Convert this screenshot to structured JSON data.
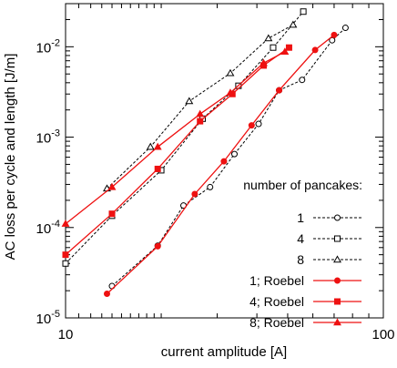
{
  "chart_data": {
    "type": "line",
    "title": "",
    "xlabel": "current amplitude [A]",
    "ylabel": "AC loss per cycle and length [J/m]",
    "xscale": "log",
    "yscale": "log",
    "xlim": [
      10,
      100
    ],
    "ylim": [
      1e-05,
      0.03
    ],
    "x_ticks": [
      {
        "value": 10,
        "label": "10"
      },
      {
        "value": 100,
        "label": "100"
      }
    ],
    "y_ticks": [
      {
        "value": 1e-05,
        "base": "10",
        "exp": "-5"
      },
      {
        "value": 0.0001,
        "base": "10",
        "exp": "-4"
      },
      {
        "value": 0.001,
        "base": "10",
        "exp": "-3"
      },
      {
        "value": 0.01,
        "base": "10",
        "exp": "-2"
      }
    ],
    "grid": false,
    "legend_title": "number of pancakes:",
    "legend_position": "bottom-right",
    "series": [
      {
        "name": "1",
        "color": "#000000",
        "dash": true,
        "marker": "circle-open",
        "points": [
          [
            14.0,
            2.25e-05
          ],
          [
            19.5,
            6.3e-05
          ],
          [
            23.5,
            0.000175
          ],
          [
            28.5,
            0.00028
          ],
          [
            34.0,
            0.00065
          ],
          [
            40.5,
            0.0014
          ],
          [
            47.0,
            0.0033
          ],
          [
            55.5,
            0.0043
          ],
          [
            69.0,
            0.0118
          ],
          [
            76.0,
            0.0162
          ]
        ]
      },
      {
        "name": "4",
        "color": "#000000",
        "dash": true,
        "marker": "square-open",
        "points": [
          [
            10.0,
            4e-05
          ],
          [
            14.0,
            0.000135
          ],
          [
            20.0,
            0.00043
          ],
          [
            27.0,
            0.0016
          ],
          [
            35.0,
            0.0037
          ],
          [
            45.0,
            0.0098
          ],
          [
            56.0,
            0.0245
          ]
        ]
      },
      {
        "name": "8",
        "color": "#000000",
        "dash": true,
        "marker": "triangle-open",
        "points": [
          [
            13.5,
            0.00027
          ],
          [
            18.5,
            0.00078
          ],
          [
            24.5,
            0.0025
          ],
          [
            33.0,
            0.0051
          ],
          [
            43.5,
            0.0124
          ],
          [
            52.0,
            0.0175
          ]
        ]
      },
      {
        "name": "1; Roebel",
        "color": "#ee1111",
        "dash": false,
        "marker": "circle-filled",
        "points": [
          [
            13.5,
            1.85e-05
          ],
          [
            19.5,
            6.2e-05
          ],
          [
            25.5,
            0.000235
          ],
          [
            31.5,
            0.00054
          ],
          [
            38.5,
            0.00135
          ],
          [
            47.0,
            0.0033
          ],
          [
            61.0,
            0.0092
          ],
          [
            70.0,
            0.0135
          ]
        ]
      },
      {
        "name": "4; Roebel",
        "color": "#ee1111",
        "dash": false,
        "marker": "square-filled",
        "points": [
          [
            10.0,
            5e-05
          ],
          [
            14.0,
            0.000142
          ],
          [
            19.5,
            0.000445
          ],
          [
            26.5,
            0.0015
          ],
          [
            33.5,
            0.003
          ],
          [
            42.0,
            0.0062
          ],
          [
            50.5,
            0.0098
          ]
        ]
      },
      {
        "name": "8; Roebel",
        "color": "#ee1111",
        "dash": false,
        "marker": "triangle-filled",
        "points": [
          [
            10.0,
            0.00011
          ],
          [
            14.0,
            0.00028
          ],
          [
            19.5,
            0.00078
          ],
          [
            26.5,
            0.0018
          ],
          [
            33.0,
            0.0031
          ],
          [
            42.0,
            0.0066
          ],
          [
            49.0,
            0.0088
          ]
        ]
      }
    ]
  }
}
